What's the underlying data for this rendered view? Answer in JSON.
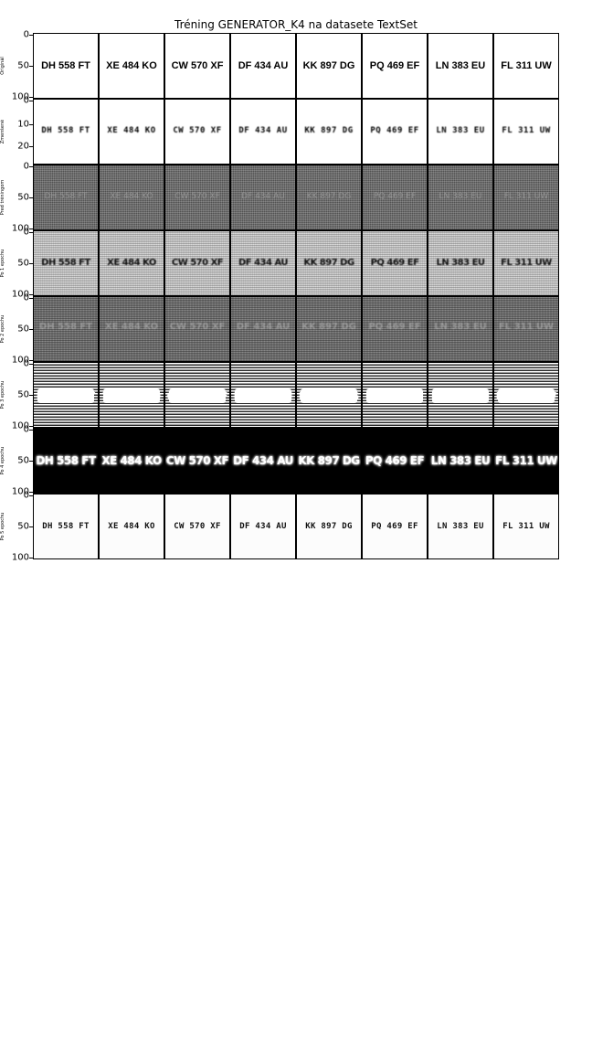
{
  "title": "Tréning GENERATOR_K4 na datasete TextSet",
  "plates": [
    "DH 558 FT",
    "XE 484 KO",
    "CW 570 XF",
    "DF 434 AU",
    "KK 897 DG",
    "PQ 469 EF",
    "LN 383 EU",
    "FL 311 UW"
  ],
  "rows": [
    {
      "label": "Originál",
      "ticks": [
        "0",
        "50",
        "100"
      ]
    },
    {
      "label": "Zmenšené",
      "ticks": [
        "0",
        "10",
        "20"
      ]
    },
    {
      "label": "Pred tréningom",
      "ticks": [
        "0",
        "50",
        "100"
      ]
    },
    {
      "label": "Po 1 epochu",
      "ticks": [
        "0",
        "50",
        "100"
      ]
    },
    {
      "label": "Po 2 epochu",
      "ticks": [
        "0",
        "50",
        "100"
      ]
    },
    {
      "label": "Po 3 epochu",
      "ticks": [
        "0",
        "50",
        "100"
      ]
    },
    {
      "label": "Po 4 epochu",
      "ticks": [
        "0",
        "50",
        "100"
      ]
    },
    {
      "label": "Po 5 epochu",
      "ticks": [
        "0",
        "50",
        "100"
      ]
    }
  ]
}
